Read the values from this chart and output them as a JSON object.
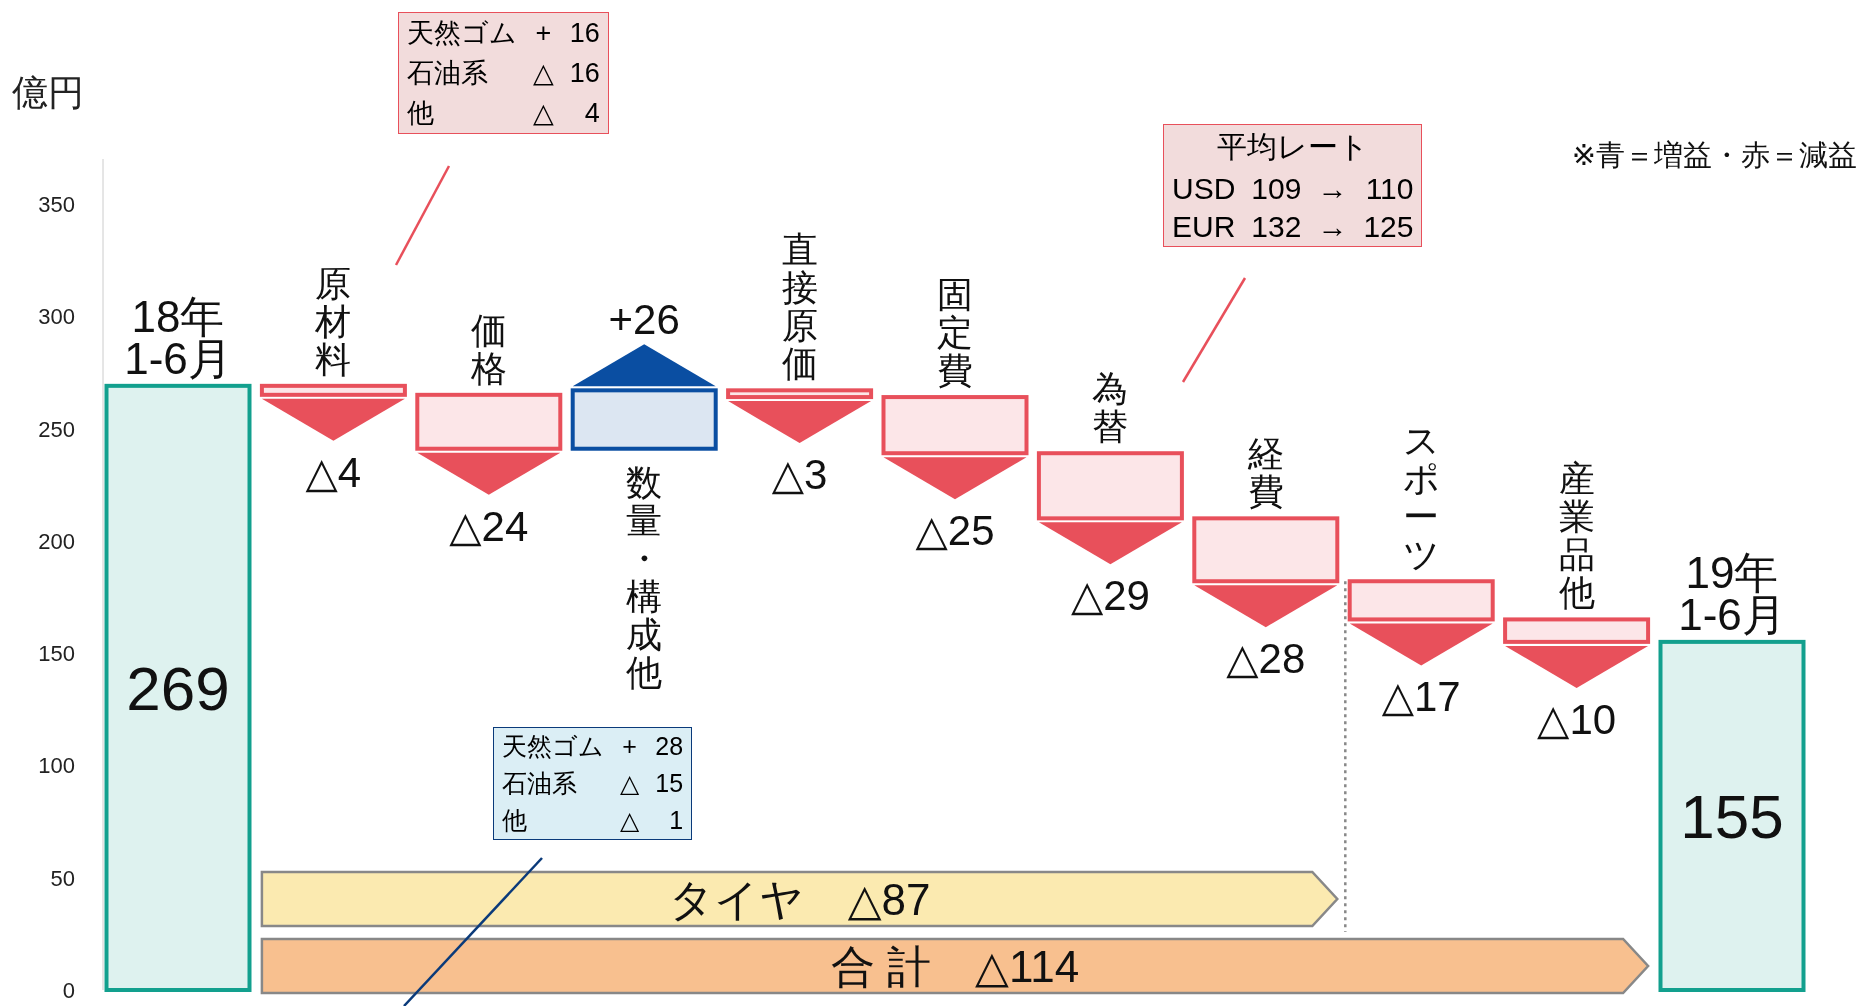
{
  "chart_data": {
    "type": "bar",
    "ylabel": "億円",
    "categories": [
      "18年\n1-6月",
      "原材料",
      "価格",
      "数量・構成他",
      "直接原価",
      "固定費",
      "為替",
      "経費",
      "スポーツ",
      "産業品他",
      "19年\n1-6月"
    ],
    "base": [
      0,
      269,
      265,
      241,
      267,
      264,
      239,
      210,
      182,
      165,
      0
    ],
    "values": [
      269,
      -4,
      -24,
      26,
      -3,
      -25,
      -29,
      -28,
      -17,
      -10,
      155
    ],
    "value_labels": [
      "269",
      "△4",
      "△24",
      "+26",
      "△3",
      "△25",
      "△29",
      "△28",
      "△17",
      "△10",
      "155"
    ],
    "colors": [
      "#12a08e",
      "#e8505b",
      "#e8505b",
      "#0a4ea2",
      "#e8505b",
      "#e8505b",
      "#e8505b",
      "#e8505b",
      "#e8505b",
      "#e8505b",
      "#12a08e"
    ],
    "ylim": [
      0,
      370
    ],
    "yticks": [
      0,
      50,
      100,
      150,
      200,
      250,
      300,
      350
    ],
    "bands": [
      {
        "axis": "x",
        "from": "原材料",
        "to": "経費",
        "label": "タイヤ　△87",
        "color": "#fbeab0"
      },
      {
        "axis": "x",
        "from": "原材料",
        "to": "産業品他",
        "label": "合 計　△114",
        "color": "#f8c08f"
      }
    ],
    "annotations": [
      "※青＝増益・赤＝減益",
      "天然ゴム + 16\n石油系 △ 16\n他 △ 4",
      "天然ゴム + 28\n石油系 △ 15\n他 △ 1",
      "平均レート\nUSD 109 → 110\nEUR 132 → 125"
    ],
    "grid": false
  }
}
